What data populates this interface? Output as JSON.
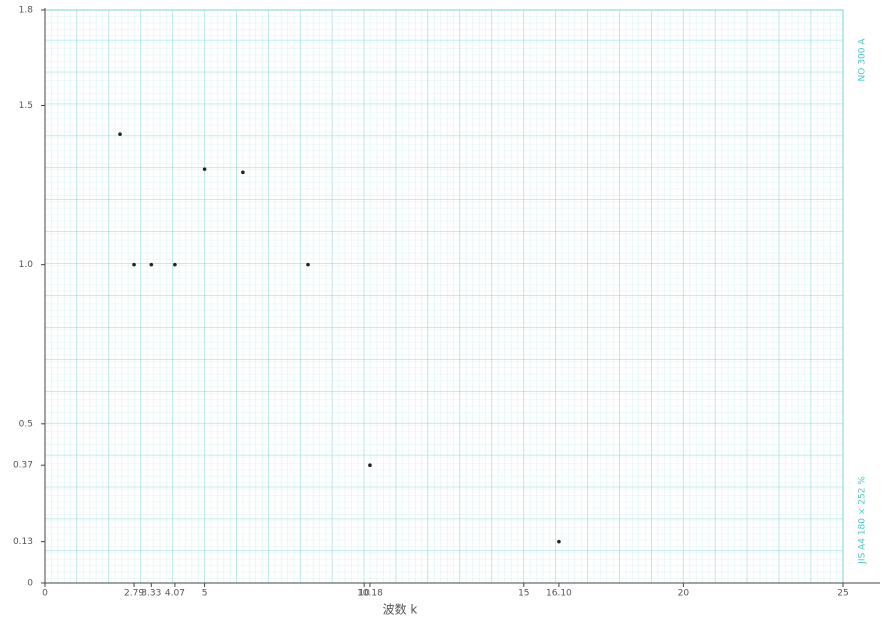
{
  "chart_data": {
    "type": "scatter",
    "x_label": "波数 k",
    "side_texts": [
      "NO 300 A",
      "JIS A4 180 × 252 %"
    ],
    "series": [
      {
        "color": "#222222",
        "x": [
          2.35,
          2.79,
          3.33,
          4.07,
          5,
          6.2,
          8.24,
          10.18,
          16.1
        ],
        "values": [
          1.41,
          1.0,
          1.0,
          1.0,
          1.3,
          1.29,
          1.0,
          0.37,
          0.13
        ]
      }
    ],
    "xlim": [
      0,
      25
    ],
    "ylim": [
      0,
      1.8
    ],
    "xticks": [
      0,
      {
        "value": 2.79,
        "label": "2.79"
      },
      {
        "value": 3.33,
        "label": "3.33"
      },
      {
        "value": 4.07,
        "label": "4.07"
      },
      5,
      10,
      {
        "value": 10.18,
        "label": "10.18"
      },
      15,
      {
        "value": 16.1,
        "label": "16.10"
      },
      20,
      25
    ],
    "yticks": [
      0,
      0.13,
      0.37,
      0.5,
      {
        "value": 1,
        "label": "1.0"
      },
      1.5,
      1.8
    ],
    "grid": true
  }
}
